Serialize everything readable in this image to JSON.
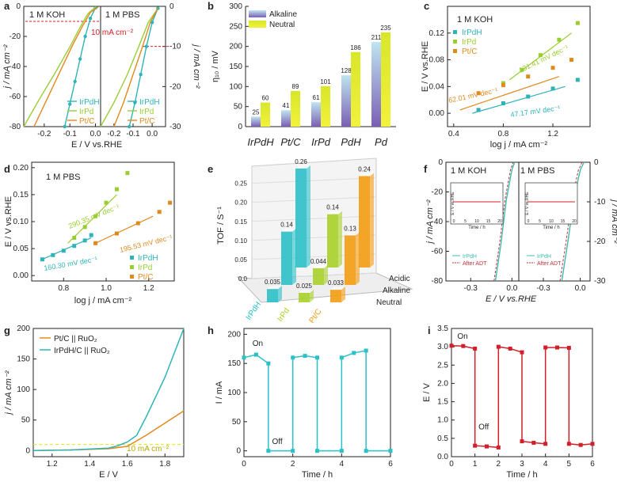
{
  "colors": {
    "irpdh": "#2fb3b8",
    "irpd": "#9acd32",
    "ptc": "#e08a1e",
    "red": "#d0202a",
    "purple": "#7a5fb4",
    "yellow": "#e6ea2a",
    "orange": "#f39c12",
    "cyan": "#2cc0c8",
    "green": "#a8d02a",
    "darkred": "#c0303a",
    "teal": "#3cbcb0"
  },
  "chart_data": [
    {
      "id": "a",
      "type": "line",
      "panel_label": "a",
      "xlabel": "E / V vs.RHE",
      "ylabel_left": "j / mA cm⁻²",
      "ylabel_right": "j / mA cm⁻²",
      "left": {
        "title": "1 M KOH",
        "xlim": [
          -0.28,
          0.02
        ],
        "ylim": [
          -80,
          0
        ],
        "xticks": [
          "-0.2",
          "-0.1",
          "0.0"
        ],
        "yticks": [
          "-80",
          "-60",
          "-40",
          "-20",
          "0"
        ]
      },
      "right": {
        "title": "1 M PBS",
        "xlim": [
          -0.27,
          0.07
        ],
        "ylim": [
          -30,
          0
        ],
        "xticks": [
          "-0.2",
          "-0.1",
          "0.0"
        ],
        "yticks": [
          "-30",
          "-20",
          "-10",
          "0"
        ]
      },
      "annotation": "10 mA cm⁻²",
      "series": [
        {
          "name": "IrPdH",
          "left_x": [
            -0.12,
            -0.1,
            -0.08,
            -0.06,
            -0.04,
            -0.02,
            0.0
          ],
          "left_y": [
            -80,
            -65,
            -50,
            -35,
            -20,
            -8,
            -1
          ],
          "right_x": [
            -0.12,
            -0.09,
            -0.06,
            -0.03,
            0.0,
            0.03
          ],
          "right_y": [
            -30,
            -24,
            -17,
            -10,
            -4,
            -0.5
          ]
        },
        {
          "name": "IrPd",
          "left_x": [
            -0.28,
            -0.22,
            -0.16,
            -0.1,
            -0.06,
            -0.03,
            0.0
          ],
          "left_y": [
            -80,
            -62,
            -45,
            -27,
            -14,
            -5,
            -0.5
          ],
          "right_x": [
            -0.27,
            -0.2,
            -0.13,
            -0.07,
            -0.02,
            0.03
          ],
          "right_y": [
            -30,
            -24,
            -17,
            -10,
            -4,
            -0.5
          ]
        },
        {
          "name": "Pt/C",
          "left_x": [
            -0.24,
            -0.19,
            -0.14,
            -0.09,
            -0.05,
            -0.02,
            0.01
          ],
          "left_y": [
            -80,
            -62,
            -44,
            -26,
            -13,
            -4,
            -0.5
          ],
          "right_x": [
            -0.2,
            -0.15,
            -0.1,
            -0.05,
            -0.01,
            0.03
          ],
          "right_y": [
            -30,
            -24,
            -17,
            -10,
            -4,
            -0.5
          ]
        }
      ]
    },
    {
      "id": "b",
      "type": "bar",
      "panel_label": "b",
      "ylabel": "η₁₀ / mV",
      "ylim": [
        0,
        300
      ],
      "yticks": [
        "0",
        "50",
        "100",
        "150",
        "200",
        "250",
        "300"
      ],
      "categories": [
        "IrPdH",
        "Pt/C",
        "IrPd",
        "PdH",
        "Pd"
      ],
      "series": [
        {
          "name": "Alkaline",
          "values": [
            25,
            41,
            61,
            128,
            211
          ]
        },
        {
          "name": "Neutral",
          "values": [
            60,
            89,
            101,
            186,
            235
          ]
        }
      ]
    },
    {
      "id": "c",
      "type": "line",
      "panel_label": "c",
      "title": "1 M KOH",
      "xlabel": "log j / mA cm⁻²",
      "ylabel": "E / V vs.RHE",
      "xlim": [
        0.35,
        1.5
      ],
      "ylim": [
        -0.02,
        0.16
      ],
      "xticks": [
        "0.4",
        "0.8",
        "1.2"
      ],
      "yticks": [
        "0.00",
        "0.04",
        "0.08",
        "0.12"
      ],
      "series": [
        {
          "name": "IrPdH",
          "x": [
            0.6,
            0.8,
            1.0,
            1.2,
            1.4
          ],
          "y": [
            0.005,
            0.015,
            0.025,
            0.037,
            0.05
          ],
          "fit": [
            [
              0.55,
              0.0
            ],
            [
              1.3,
              0.04
            ]
          ],
          "slope_label": "47.17 mV dec⁻¹"
        },
        {
          "name": "IrPd",
          "x": [
            0.8,
            0.95,
            1.1,
            1.25,
            1.4
          ],
          "y": [
            0.045,
            0.065,
            0.087,
            0.11,
            0.135
          ],
          "fit": [
            [
              0.85,
              0.05
            ],
            [
              1.35,
              0.12
            ]
          ],
          "slope_label": "131.41 mV dec⁻¹"
        },
        {
          "name": "Pt/C",
          "x": [
            0.6,
            0.8,
            1.0,
            1.2,
            1.35
          ],
          "y": [
            0.03,
            0.042,
            0.055,
            0.068,
            0.08
          ],
          "fit": [
            [
              0.45,
              0.005
            ],
            [
              1.25,
              0.055
            ]
          ],
          "slope_label": "62.01 mV dec⁻¹"
        }
      ]
    },
    {
      "id": "d",
      "type": "line",
      "panel_label": "d",
      "title": "1 M PBS",
      "xlabel": "log j / mA cm⁻²",
      "ylabel": "E / V vs.RHE",
      "xlim": [
        0.65,
        1.32
      ],
      "ylim": [
        -0.01,
        0.21
      ],
      "xticks": [
        "0.8",
        "1.0",
        "1.2"
      ],
      "yticks": [
        "0.00",
        "0.05",
        "0.10",
        "0.15",
        "0.20"
      ],
      "series": [
        {
          "name": "IrPdH",
          "x": [
            0.7,
            0.75,
            0.8,
            0.85,
            0.9,
            0.93
          ],
          "y": [
            0.03,
            0.038,
            0.046,
            0.055,
            0.065,
            0.075
          ],
          "fit": [
            [
              0.7,
              0.03
            ],
            [
              0.93,
              0.07
            ]
          ],
          "slope_label": "160.30 mV dec⁻¹"
        },
        {
          "name": "IrPd",
          "x": [
            0.85,
            0.9,
            0.95,
            1.0,
            1.05,
            1.1
          ],
          "y": [
            0.07,
            0.09,
            0.11,
            0.135,
            0.16,
            0.19
          ],
          "fit": [
            [
              0.82,
              0.06
            ],
            [
              1.05,
              0.15
            ]
          ],
          "slope_label": "290.35 mV dec⁻¹"
        },
        {
          "name": "Pt/C",
          "x": [
            0.95,
            1.05,
            1.15,
            1.25,
            1.3
          ],
          "y": [
            0.06,
            0.078,
            0.097,
            0.118,
            0.135
          ],
          "fit": [
            [
              0.95,
              0.06
            ],
            [
              1.22,
              0.11
            ]
          ],
          "slope_label": "195.53 mV dec⁻¹"
        }
      ]
    },
    {
      "id": "e",
      "type": "bar",
      "panel_label": "e",
      "subtype": "3d-bar",
      "zlabel": "TOF / S⁻¹",
      "zticks": [
        "0.0",
        "0.05",
        "0.10",
        "0.15",
        "0.20",
        "0.25"
      ],
      "categories": [
        "IrPdH",
        "IrPd",
        "Pt/C"
      ],
      "depth_categories": [
        "Neutral",
        "Alkaline",
        "Acidic"
      ],
      "series": [
        {
          "name": "Neutral",
          "values": [
            0.035,
            0.025,
            0.033
          ]
        },
        {
          "name": "Alkaline",
          "values": [
            0.14,
            0.044,
            0.13
          ]
        },
        {
          "name": "Acidic",
          "values": [
            0.26,
            0.14,
            0.24
          ]
        }
      ]
    },
    {
      "id": "f",
      "type": "line",
      "panel_label": "f",
      "xlabel": "E / V vs.RHE",
      "ylabel_left": "j / mA cm⁻²",
      "ylabel_right": "j / mA cm⁻²",
      "left": {
        "title": "1 M KOH",
        "xlim": [
          -0.48,
          0.05
        ],
        "ylim": [
          -80,
          0
        ],
        "xticks": [
          "-0.3",
          "0.0"
        ],
        "yticks": [
          "-80",
          "-60",
          "-40",
          "-20",
          "0"
        ]
      },
      "right": {
        "title": "1 M PBS",
        "xlim": [
          -0.5,
          0.08
        ],
        "ylim": [
          -30,
          0
        ],
        "xticks": [
          "-0.3",
          "0.0"
        ],
        "yticks": [
          "-30",
          "-20",
          "-10",
          "0"
        ]
      },
      "inset": {
        "xlabel": "Time / h",
        "ylabel": "E / V vs.RHE",
        "xticks": [
          "0",
          "5",
          "10",
          "15",
          "20"
        ]
      },
      "series": [
        {
          "name": "IrPdH"
        },
        {
          "name": "After ADT"
        }
      ]
    },
    {
      "id": "g",
      "type": "line",
      "panel_label": "g",
      "xlabel": "E / V",
      "ylabel": "j / mA cm⁻²",
      "xlim": [
        1.1,
        1.9
      ],
      "ylim": [
        -10,
        200
      ],
      "xticks": [
        "1.2",
        "1.4",
        "1.6",
        "1.8"
      ],
      "yticks": [
        "0",
        "50",
        "100",
        "150",
        "200"
      ],
      "annotation": "10 mA cm⁻²",
      "series": [
        {
          "name": "Pt/C || RuO₂",
          "x": [
            1.1,
            1.3,
            1.5,
            1.6,
            1.7,
            1.8,
            1.9
          ],
          "y": [
            0,
            1,
            3,
            7,
            25,
            45,
            65
          ]
        },
        {
          "name": "IrPdH/C || RuO₂",
          "x": [
            1.1,
            1.3,
            1.5,
            1.55,
            1.6,
            1.65,
            1.7,
            1.8,
            1.9
          ],
          "y": [
            0,
            1,
            4,
            8,
            14,
            25,
            55,
            120,
            200
          ]
        }
      ]
    },
    {
      "id": "h",
      "type": "line",
      "panel_label": "h",
      "xlabel": "Time / h",
      "ylabel": "I / mA",
      "xlim": [
        0,
        6
      ],
      "ylim": [
        -10,
        210
      ],
      "xticks": [
        "0",
        "2",
        "4",
        "6"
      ],
      "yticks": [
        "0",
        "50",
        "100",
        "150",
        "200"
      ],
      "annotations": [
        "On",
        "Off"
      ],
      "series": [
        {
          "name": "I",
          "x": [
            0,
            0.5,
            1,
            1,
            2,
            2,
            2.5,
            3,
            3,
            4,
            4,
            4.5,
            5,
            5,
            6
          ],
          "y": [
            160,
            165,
            150,
            0,
            0,
            160,
            163,
            160,
            0,
            0,
            160,
            168,
            172,
            0,
            0
          ]
        }
      ]
    },
    {
      "id": "i",
      "type": "line",
      "panel_label": "i",
      "xlabel": "Time / h",
      "ylabel": "E / V",
      "xlim": [
        0,
        6
      ],
      "ylim": [
        0,
        3.5
      ],
      "xticks": [
        "0",
        "1",
        "2",
        "3",
        "4",
        "5",
        "6"
      ],
      "yticks": [
        "0.0",
        "0.5",
        "1.0",
        "1.5",
        "2.0",
        "2.5",
        "3.0",
        "3.5"
      ],
      "annotations": [
        "On",
        "Off"
      ],
      "series": [
        {
          "name": "E",
          "x": [
            0,
            0.5,
            1,
            1,
            1.5,
            2,
            2,
            2.5,
            3,
            3,
            3.5,
            4,
            4,
            4.5,
            5,
            5,
            5.5,
            6
          ],
          "y": [
            3.03,
            3.02,
            2.95,
            0.3,
            0.28,
            0.25,
            3.0,
            2.95,
            2.85,
            0.42,
            0.38,
            0.35,
            2.98,
            2.98,
            2.97,
            0.35,
            0.32,
            0.35
          ]
        }
      ]
    }
  ]
}
